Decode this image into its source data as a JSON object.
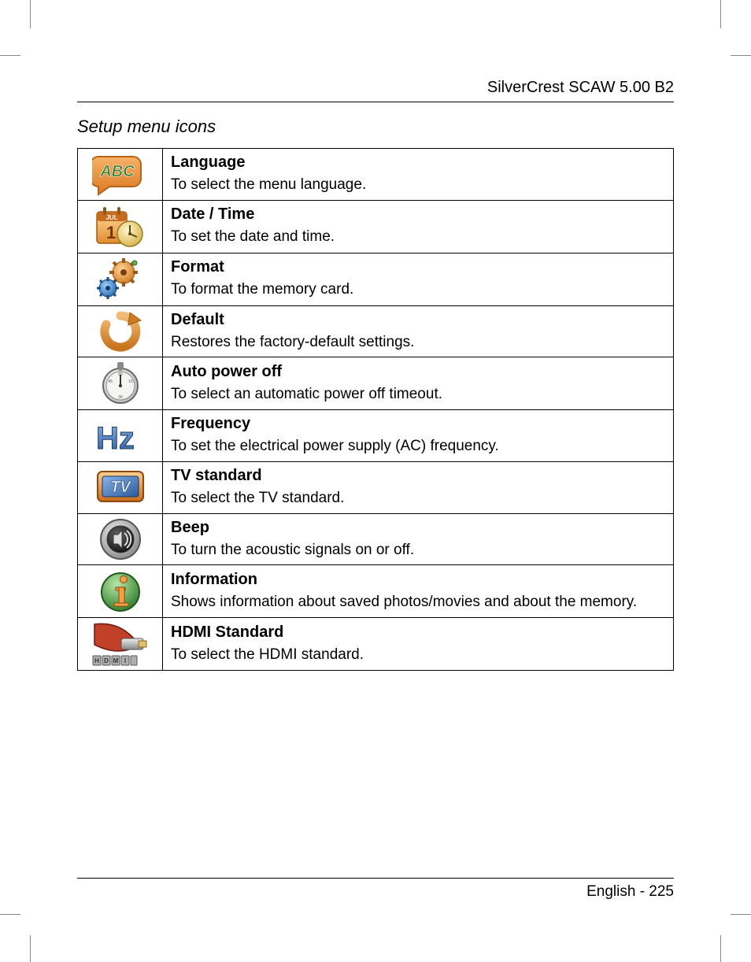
{
  "header": {
    "brand": "SilverCrest SCAW 5.00 B2"
  },
  "section": {
    "title": "Setup menu icons"
  },
  "rows": [
    {
      "icon": "abc-icon",
      "title": "Language",
      "text": "To select the menu language."
    },
    {
      "icon": "calendar-clock-icon",
      "title": "Date / Time",
      "text": "To set the date and time."
    },
    {
      "icon": "gears-icon",
      "title": "Format",
      "text": "To format the memory card."
    },
    {
      "icon": "refresh-icon",
      "title": "Default",
      "text": "Restores the factory-default settings."
    },
    {
      "icon": "stopwatch-icon",
      "title": "Auto power off",
      "text": "To select an automatic power off timeout."
    },
    {
      "icon": "hz-icon",
      "title": "Frequency",
      "text": "To set the electrical power supply (AC) frequency."
    },
    {
      "icon": "tv-icon",
      "title": "TV standard",
      "text": "To select the TV standard."
    },
    {
      "icon": "speaker-icon",
      "title": "Beep",
      "text": "To turn the acoustic signals on or off."
    },
    {
      "icon": "info-icon",
      "title": "Information",
      "text": "Shows information about saved photos/movies and about the memory."
    },
    {
      "icon": "hdmi-icon",
      "title": "HDMI Standard",
      "text": "To select the HDMI standard."
    }
  ],
  "footer": {
    "page_label": "English - 225"
  },
  "colors": {
    "orange": "#f08a3c",
    "orange_dark": "#c76a1e",
    "green": "#5aa84a",
    "green_dark": "#2e7a2a",
    "blue": "#3a6fb0",
    "blue_dark": "#1f4d85",
    "gray": "#9aa0a6",
    "gray_dark": "#4a4a4a",
    "silver": "#d8d8d8",
    "silver_dark": "#7a7a7a",
    "gold": "#e0c068"
  }
}
